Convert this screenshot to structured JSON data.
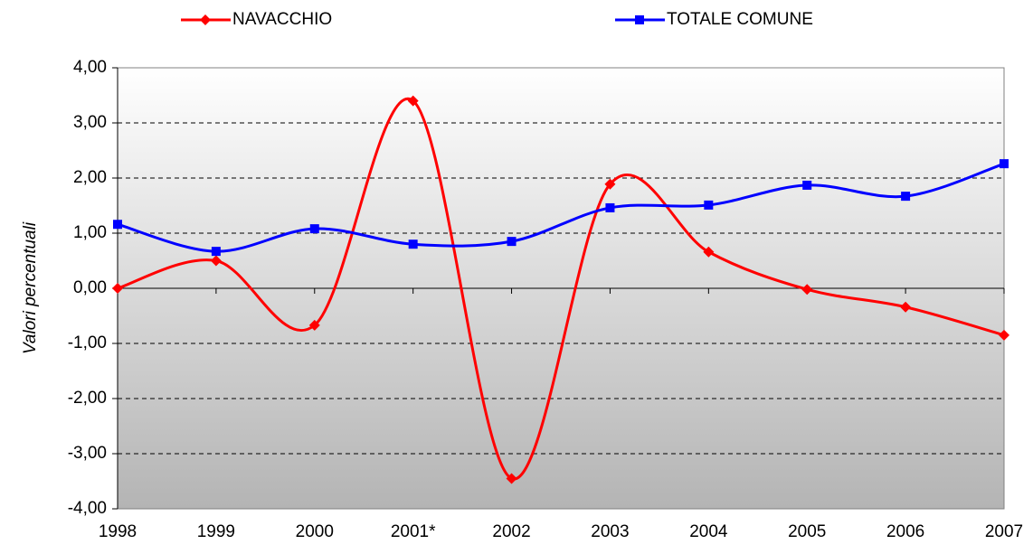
{
  "chart_data": {
    "type": "line",
    "y_label": "Valori percentuali",
    "categories": [
      "1998",
      "1999",
      "2000",
      "2001*",
      "2002",
      "2003",
      "2004",
      "2005",
      "2006",
      "2007"
    ],
    "series": [
      {
        "name": "NAVACCHIO",
        "color": "#ff0000",
        "marker": "diamond",
        "values": [
          0.0,
          0.5,
          -0.67,
          3.4,
          -3.45,
          1.89,
          0.66,
          -0.02,
          -0.34,
          -0.85
        ]
      },
      {
        "name": "TOTALE COMUNE",
        "color": "#0000ff",
        "marker": "square",
        "values": [
          1.16,
          0.67,
          1.08,
          0.8,
          0.85,
          1.46,
          1.51,
          1.87,
          1.67,
          2.26
        ]
      }
    ],
    "ylim": [
      -4,
      4
    ],
    "yticks": [
      {
        "value": -4,
        "label": "-4,00"
      },
      {
        "value": -3,
        "label": "-3,00"
      },
      {
        "value": -2,
        "label": "-2,00"
      },
      {
        "value": -1,
        "label": "-1,00"
      },
      {
        "value": 0,
        "label": "0,00"
      },
      {
        "value": 1,
        "label": "1,00"
      },
      {
        "value": 2,
        "label": "2,00"
      },
      {
        "value": 3,
        "label": "3,00"
      },
      {
        "value": 4,
        "label": "4,00"
      }
    ],
    "grid": true,
    "smooth": true,
    "legend": "top"
  }
}
